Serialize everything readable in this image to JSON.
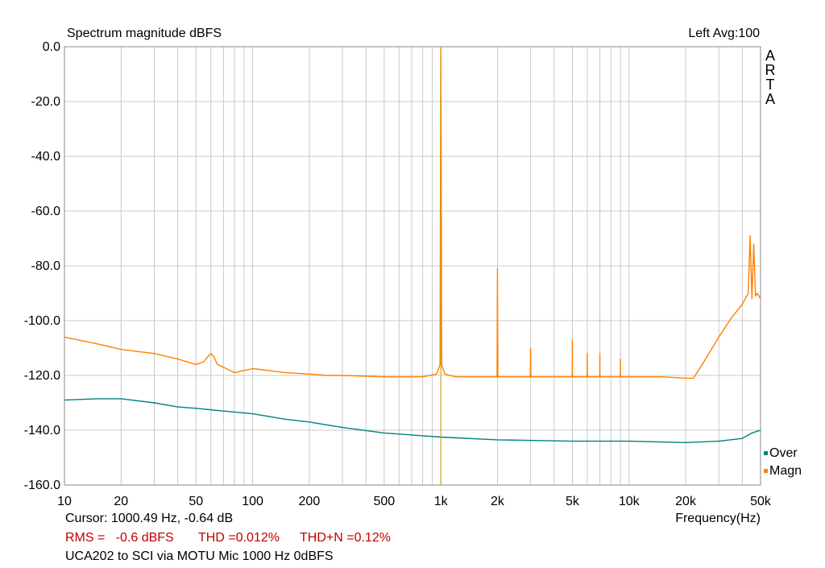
{
  "header": {
    "title": "Spectrum magnitude dBFS",
    "channel_avg": "Left  Avg:100",
    "brand_letters": [
      "A",
      "R",
      "T",
      "A"
    ]
  },
  "footer": {
    "cursor": "Cursor: 1000.49 Hz, -0.64 dB",
    "rms": "RMS =   -0.6 dBFS",
    "thd": "THD =0.012%",
    "thdn": "THD+N =0.12%",
    "description": "UCA202 to SCI via MOTU Mic 1000 Hz 0dBFS"
  },
  "colors": {
    "magn": "#ff8000",
    "over": "#008080",
    "cursor": "#c8a000",
    "grid": "#c8c8c8",
    "red_text": "#c00000"
  },
  "chart_data": {
    "type": "line",
    "title": "Spectrum magnitude dBFS",
    "xlabel": "Frequency(Hz)",
    "ylabel": "",
    "x_scale": "log",
    "xlim": [
      10,
      50000
    ],
    "ylim": [
      -160,
      0
    ],
    "x_tick_values": [
      10,
      20,
      50,
      100,
      200,
      500,
      1000,
      2000,
      5000,
      10000,
      20000,
      50000
    ],
    "x_tick_labels": [
      "10",
      "20",
      "50",
      "100",
      "200",
      "500",
      "1k",
      "2k",
      "5k",
      "10k",
      "20k",
      "50k"
    ],
    "y_tick_values": [
      0,
      -20,
      -40,
      -60,
      -80,
      -100,
      -120,
      -140,
      -160
    ],
    "y_tick_labels": [
      "0.0",
      "-20.0",
      "-40.0",
      "-60.0",
      "-80.0",
      "-100.0",
      "-120.0",
      "-140.0",
      "-160.0"
    ],
    "grid": true,
    "legend_position": "bottom-right",
    "cursor_x": 1000.49,
    "series": [
      {
        "name": "Magn",
        "color": "#ff8000",
        "x": [
          10,
          15,
          20,
          30,
          40,
          50,
          55,
          58,
          60,
          62,
          65,
          70,
          80,
          100,
          150,
          200,
          250,
          300,
          500,
          800,
          950,
          990,
          995,
          1000,
          1005,
          1010,
          1050,
          1200,
          1500,
          1990,
          2000,
          2010,
          2500,
          2990,
          3000,
          3010,
          4000,
          4990,
          5000,
          5010,
          5990,
          6000,
          6010,
          6990,
          7000,
          7010,
          8990,
          9000,
          9010,
          10000,
          15000,
          20000,
          22000,
          25000,
          30000,
          35000,
          40000,
          43000,
          44000,
          45000,
          46000,
          47000,
          48000,
          50000
        ],
        "values": [
          -106,
          -108.5,
          -110.5,
          -112,
          -114,
          -116,
          -115,
          -113,
          -112,
          -113,
          -116,
          -117,
          -119,
          -117.5,
          -119,
          -119.5,
          -120,
          -120,
          -120.5,
          -120.5,
          -119.5,
          -116,
          -60,
          -0.64,
          -43,
          -116,
          -119.5,
          -120.5,
          -120.5,
          -120.5,
          -81,
          -120.5,
          -120.5,
          -120.5,
          -110,
          -120.5,
          -120.5,
          -120.5,
          -107,
          -120.5,
          -120.5,
          -112,
          -120.5,
          -120.5,
          -112,
          -120.5,
          -120.5,
          -114,
          -120.5,
          -120.5,
          -120.5,
          -121,
          -121,
          -115,
          -106,
          -99,
          -94,
          -90,
          -69,
          -92,
          -72,
          -91,
          -90,
          -92
        ]
      },
      {
        "name": "Over",
        "color": "#008080",
        "x": [
          10,
          15,
          20,
          30,
          40,
          50,
          70,
          100,
          150,
          200,
          300,
          500,
          1000,
          2000,
          5000,
          10000,
          20000,
          30000,
          40000,
          45000,
          50000
        ],
        "values": [
          -129,
          -128.5,
          -128.5,
          -130,
          -131.5,
          -132,
          -133,
          -134,
          -136,
          -137,
          -139,
          -141,
          -142.5,
          -143.5,
          -144,
          -144,
          -144.5,
          -144,
          -143,
          -141,
          -140
        ]
      }
    ]
  }
}
